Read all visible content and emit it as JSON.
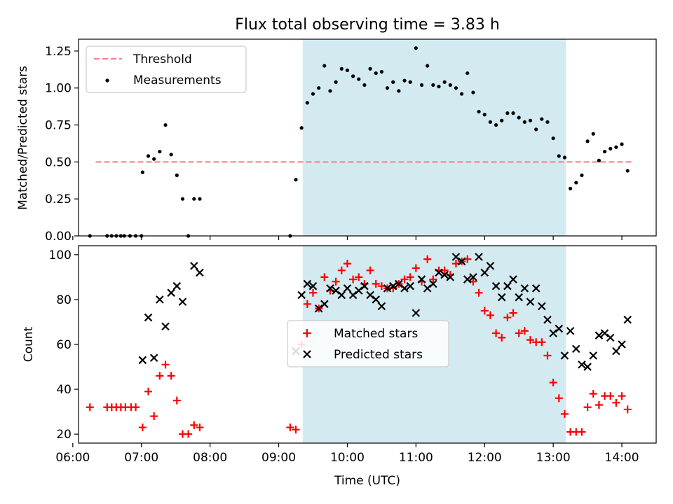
{
  "title": "Flux total observing time = 3.83 h",
  "colors": {
    "threshold": "#ff7b7b",
    "shade": "#d3eaf1",
    "matched": "#ff0000",
    "predicted": "#000000",
    "measurement": "#000000"
  },
  "chart_data": [
    {
      "type": "scatter",
      "panel": "top",
      "ylabel": "Matched/Predicted stars",
      "xlabel": "",
      "xlim": [
        "06:05",
        "14:30"
      ],
      "ylim": [
        0,
        1.33
      ],
      "y_ticks": [
        "0.00",
        "0.25",
        "0.50",
        "0.75",
        "1.00",
        "1.25"
      ],
      "grid": false,
      "legend_placement": "upper-left",
      "shaded_interval": [
        "09:21",
        "13:11"
      ],
      "threshold_line": {
        "name": "Threshold",
        "y": 0.5,
        "x_start": "06:20",
        "x_end": "14:10"
      },
      "series": [
        {
          "name": "Measurements",
          "points": [
            [
              "06:15",
              0.0
            ],
            [
              "06:30",
              0.0
            ],
            [
              "06:34",
              0.0
            ],
            [
              "06:38",
              0.0
            ],
            [
              "06:42",
              0.0
            ],
            [
              "06:45",
              0.0
            ],
            [
              "06:50",
              0.0
            ],
            [
              "06:55",
              0.0
            ],
            [
              "07:00",
              0.0
            ],
            [
              "07:01",
              0.43
            ],
            [
              "07:06",
              0.54
            ],
            [
              "07:11",
              0.52
            ],
            [
              "07:16",
              0.57
            ],
            [
              "07:21",
              0.75
            ],
            [
              "07:26",
              0.55
            ],
            [
              "07:31",
              0.41
            ],
            [
              "07:36",
              0.25
            ],
            [
              "07:41",
              0.0
            ],
            [
              "07:46",
              0.25
            ],
            [
              "07:51",
              0.25
            ],
            [
              "09:10",
              0.0
            ],
            [
              "09:15",
              0.38
            ],
            [
              "09:20",
              0.73
            ],
            [
              "09:25",
              0.9
            ],
            [
              "09:30",
              0.96
            ],
            [
              "09:35",
              1.0
            ],
            [
              "09:40",
              1.15
            ],
            [
              "09:45",
              0.98
            ],
            [
              "09:50",
              1.04
            ],
            [
              "09:55",
              1.13
            ],
            [
              "10:00",
              1.12
            ],
            [
              "10:05",
              1.08
            ],
            [
              "10:10",
              1.06
            ],
            [
              "10:15",
              1.02
            ],
            [
              "10:20",
              1.13
            ],
            [
              "10:25",
              1.1
            ],
            [
              "10:30",
              1.11
            ],
            [
              "10:35",
              1.0
            ],
            [
              "10:40",
              1.04
            ],
            [
              "10:45",
              0.98
            ],
            [
              "10:50",
              1.05
            ],
            [
              "10:55",
              1.04
            ],
            [
              "11:00",
              1.27
            ],
            [
              "11:05",
              1.02
            ],
            [
              "11:10",
              1.15
            ],
            [
              "11:15",
              1.02
            ],
            [
              "11:20",
              1.01
            ],
            [
              "11:25",
              1.04
            ],
            [
              "11:30",
              1.02
            ],
            [
              "11:35",
              1.0
            ],
            [
              "11:40",
              0.96
            ],
            [
              "11:45",
              1.1
            ],
            [
              "11:50",
              0.97
            ],
            [
              "11:55",
              0.84
            ],
            [
              "12:00",
              0.82
            ],
            [
              "12:05",
              0.77
            ],
            [
              "12:10",
              0.75
            ],
            [
              "12:15",
              0.78
            ],
            [
              "12:20",
              0.83
            ],
            [
              "12:25",
              0.83
            ],
            [
              "12:30",
              0.8
            ],
            [
              "12:35",
              0.77
            ],
            [
              "12:40",
              0.78
            ],
            [
              "12:45",
              0.72
            ],
            [
              "12:50",
              0.79
            ],
            [
              "12:55",
              0.77
            ],
            [
              "13:00",
              0.66
            ],
            [
              "13:05",
              0.54
            ],
            [
              "13:10",
              0.53
            ],
            [
              "13:15",
              0.32
            ],
            [
              "13:20",
              0.36
            ],
            [
              "13:25",
              0.41
            ],
            [
              "13:30",
              0.64
            ],
            [
              "13:35",
              0.69
            ],
            [
              "13:40",
              0.51
            ],
            [
              "13:45",
              0.57
            ],
            [
              "13:50",
              0.59
            ],
            [
              "13:55",
              0.6
            ],
            [
              "14:00",
              0.62
            ],
            [
              "14:05",
              0.44
            ]
          ]
        }
      ]
    },
    {
      "type": "scatter",
      "panel": "bottom",
      "ylabel": "Count",
      "xlabel": "Time (UTC)",
      "xlim": [
        "06:05",
        "14:30"
      ],
      "ylim": [
        16,
        104
      ],
      "y_ticks": [
        "20",
        "40",
        "60",
        "80",
        "100"
      ],
      "x_ticks": [
        "06:00",
        "07:00",
        "08:00",
        "09:00",
        "10:00",
        "11:00",
        "12:00",
        "13:00",
        "14:00"
      ],
      "grid": false,
      "legend_placement": "center",
      "shaded_interval": [
        "09:21",
        "13:11"
      ],
      "series": [
        {
          "name": "Matched stars",
          "marker": "plus",
          "points": [
            [
              "06:15",
              32
            ],
            [
              "06:30",
              32
            ],
            [
              "06:34",
              32
            ],
            [
              "06:38",
              32
            ],
            [
              "06:42",
              32
            ],
            [
              "06:46",
              32
            ],
            [
              "06:51",
              32
            ],
            [
              "06:55",
              32
            ],
            [
              "07:01",
              23
            ],
            [
              "07:06",
              39
            ],
            [
              "07:11",
              28
            ],
            [
              "07:16",
              46
            ],
            [
              "07:21",
              51
            ],
            [
              "07:26",
              46
            ],
            [
              "07:31",
              35
            ],
            [
              "07:36",
              20
            ],
            [
              "07:41",
              20
            ],
            [
              "07:46",
              24
            ],
            [
              "07:51",
              23
            ],
            [
              "09:10",
              23
            ],
            [
              "09:15",
              22
            ],
            [
              "09:20",
              60
            ],
            [
              "09:25",
              78
            ],
            [
              "09:30",
              83
            ],
            [
              "09:35",
              76
            ],
            [
              "09:40",
              90
            ],
            [
              "09:45",
              84
            ],
            [
              "09:50",
              88
            ],
            [
              "09:55",
              93
            ],
            [
              "10:00",
              96
            ],
            [
              "10:05",
              89
            ],
            [
              "10:10",
              90
            ],
            [
              "10:15",
              87
            ],
            [
              "10:20",
              93
            ],
            [
              "10:25",
              87
            ],
            [
              "10:30",
              86
            ],
            [
              "10:35",
              85
            ],
            [
              "10:40",
              85
            ],
            [
              "10:45",
              87
            ],
            [
              "10:50",
              89
            ],
            [
              "10:55",
              90
            ],
            [
              "11:00",
              94
            ],
            [
              "11:05",
              88
            ],
            [
              "11:10",
              98
            ],
            [
              "11:15",
              89
            ],
            [
              "11:20",
              93
            ],
            [
              "11:25",
              93
            ],
            [
              "11:30",
              91
            ],
            [
              "11:35",
              96
            ],
            [
              "11:40",
              97
            ],
            [
              "11:45",
              98
            ],
            [
              "11:50",
              88
            ],
            [
              "11:55",
              83
            ],
            [
              "12:00",
              75
            ],
            [
              "12:05",
              73
            ],
            [
              "12:10",
              65
            ],
            [
              "12:15",
              63
            ],
            [
              "12:20",
              72
            ],
            [
              "12:25",
              74
            ],
            [
              "12:30",
              65
            ],
            [
              "12:35",
              66
            ],
            [
              "12:40",
              62
            ],
            [
              "12:45",
              61
            ],
            [
              "12:50",
              61
            ],
            [
              "12:55",
              55
            ],
            [
              "13:00",
              43
            ],
            [
              "13:05",
              36
            ],
            [
              "13:10",
              29
            ],
            [
              "13:15",
              21
            ],
            [
              "13:20",
              21
            ],
            [
              "13:25",
              21
            ],
            [
              "13:30",
              32
            ],
            [
              "13:35",
              38
            ],
            [
              "13:40",
              33
            ],
            [
              "13:45",
              37
            ],
            [
              "13:50",
              37
            ],
            [
              "13:55",
              34
            ],
            [
              "14:00",
              37
            ],
            [
              "14:05",
              31
            ]
          ]
        },
        {
          "name": "Predicted stars",
          "marker": "x",
          "points": [
            [
              "07:01",
              53
            ],
            [
              "07:06",
              72
            ],
            [
              "07:11",
              54
            ],
            [
              "07:16",
              80
            ],
            [
              "07:21",
              68
            ],
            [
              "07:26",
              83
            ],
            [
              "07:31",
              86
            ],
            [
              "07:36",
              79
            ],
            [
              "07:46",
              95
            ],
            [
              "07:51",
              92
            ],
            [
              "09:15",
              57
            ],
            [
              "09:20",
              82
            ],
            [
              "09:25",
              87
            ],
            [
              "09:30",
              86
            ],
            [
              "09:35",
              76
            ],
            [
              "09:40",
              78
            ],
            [
              "09:45",
              85
            ],
            [
              "09:50",
              84
            ],
            [
              "09:55",
              82
            ],
            [
              "10:00",
              85
            ],
            [
              "10:05",
              82
            ],
            [
              "10:10",
              84
            ],
            [
              "10:15",
              86
            ],
            [
              "10:20",
              82
            ],
            [
              "10:25",
              80
            ],
            [
              "10:30",
              77
            ],
            [
              "10:35",
              85
            ],
            [
              "10:40",
              86
            ],
            [
              "10:45",
              87
            ],
            [
              "10:50",
              85
            ],
            [
              "10:55",
              86
            ],
            [
              "11:00",
              74
            ],
            [
              "11:05",
              89
            ],
            [
              "11:10",
              85
            ],
            [
              "11:15",
              87
            ],
            [
              "11:20",
              92
            ],
            [
              "11:25",
              91
            ],
            [
              "11:30",
              90
            ],
            [
              "11:35",
              99
            ],
            [
              "11:40",
              97
            ],
            [
              "11:45",
              89
            ],
            [
              "11:50",
              90
            ],
            [
              "11:55",
              99
            ],
            [
              "12:00",
              92
            ],
            [
              "12:05",
              95
            ],
            [
              "12:10",
              86
            ],
            [
              "12:15",
              81
            ],
            [
              "12:20",
              86
            ],
            [
              "12:25",
              89
            ],
            [
              "12:30",
              81
            ],
            [
              "12:35",
              85
            ],
            [
              "12:40",
              79
            ],
            [
              "12:45",
              85
            ],
            [
              "12:50",
              77
            ],
            [
              "12:55",
              71
            ],
            [
              "13:00",
              65
            ],
            [
              "13:05",
              67
            ],
            [
              "13:10",
              55
            ],
            [
              "13:15",
              66
            ],
            [
              "13:20",
              58
            ],
            [
              "13:25",
              51
            ],
            [
              "13:30",
              50
            ],
            [
              "13:35",
              55
            ],
            [
              "13:40",
              64
            ],
            [
              "13:45",
              65
            ],
            [
              "13:50",
              63
            ],
            [
              "13:55",
              57
            ],
            [
              "14:00",
              60
            ],
            [
              "14:05",
              71
            ]
          ]
        }
      ]
    }
  ]
}
